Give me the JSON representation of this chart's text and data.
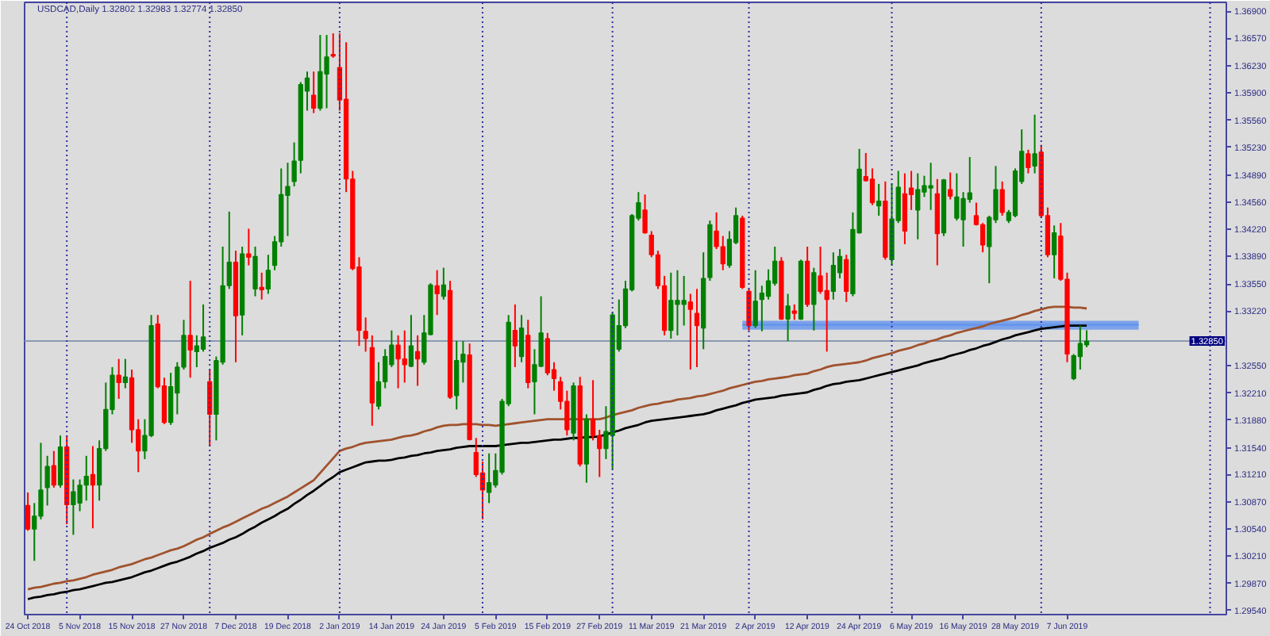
{
  "chart_data": {
    "type": "candlestick",
    "title": "USDCAD,Daily 1.32802 1.32983 1.32774 1.32850",
    "categories": [
      "24 Oct 2018",
      null,
      null,
      null,
      null,
      null,
      null,
      null,
      "5 Nov 2018",
      null,
      null,
      null,
      null,
      null,
      null,
      null,
      "15 Nov 2018",
      null,
      null,
      null,
      null,
      null,
      null,
      null,
      "27 Nov 2018",
      null,
      null,
      null,
      null,
      null,
      null,
      null,
      "7 Dec 2018",
      null,
      null,
      null,
      null,
      null,
      null,
      null,
      "19 Dec 2018",
      null,
      null,
      null,
      null,
      null,
      null,
      null,
      "2 Jan 2019",
      null,
      null,
      null,
      null,
      null,
      null,
      null,
      "14 Jan 2019",
      null,
      null,
      null,
      null,
      null,
      null,
      null,
      "24 Jan 2019",
      null,
      null,
      null,
      null,
      null,
      null,
      null,
      "5 Feb 2019",
      null,
      null,
      null,
      null,
      null,
      null,
      null,
      "15 Feb 2019",
      null,
      null,
      null,
      null,
      null,
      null,
      null,
      "27 Feb 2019",
      null,
      null,
      null,
      null,
      null,
      null,
      null,
      "11 Mar 2019",
      null,
      null,
      null,
      null,
      null,
      null,
      null,
      "21 Mar 2019",
      null,
      null,
      null,
      null,
      null,
      null,
      null,
      "2 Apr 2019",
      null,
      null,
      null,
      null,
      null,
      null,
      null,
      "12 Apr 2019",
      null,
      null,
      null,
      null,
      null,
      null,
      null,
      "24 Apr 2019",
      null,
      null,
      null,
      null,
      null,
      null,
      null,
      "6 May 2019",
      null,
      null,
      null,
      null,
      null,
      null,
      null,
      "16 May 2019",
      null,
      null,
      null,
      null,
      null,
      null,
      null,
      "28 May 2019",
      null,
      null,
      null,
      null,
      null,
      null,
      null,
      "7 Jun 2019",
      null,
      null,
      null,
      null,
      null,
      null,
      null,
      null,
      null,
      null,
      null,
      null,
      null,
      null,
      null,
      null,
      null,
      null,
      null,
      null,
      null,
      null,
      null,
      null
    ],
    "ohlc": [
      [
        1.3083,
        1.3099,
        1.3052,
        1.3054
      ],
      [
        1.3054,
        1.3086,
        1.3015,
        1.307
      ],
      [
        1.307,
        1.316,
        1.3066,
        1.3102
      ],
      [
        1.3105,
        1.3144,
        1.3083,
        1.3131
      ],
      [
        1.3132,
        1.315,
        1.3105,
        1.3108
      ],
      [
        1.3108,
        1.3169,
        1.3105,
        1.3155
      ],
      [
        1.3155,
        1.3169,
        1.306,
        1.3084
      ],
      [
        1.3084,
        1.3115,
        1.3047,
        1.31
      ],
      [
        1.3086,
        1.3115,
        1.3076,
        1.3108
      ],
      [
        1.3108,
        1.3144,
        1.3089,
        1.3119
      ],
      [
        1.3121,
        1.3156,
        1.3055,
        1.3108
      ],
      [
        1.3108,
        1.3163,
        1.3089,
        1.3153
      ],
      [
        1.3153,
        1.3234,
        1.315,
        1.3201
      ],
      [
        1.3201,
        1.3253,
        1.3195,
        1.3243
      ],
      [
        1.3243,
        1.3263,
        1.3214,
        1.3234
      ],
      [
        1.3234,
        1.3263,
        1.3227,
        1.3241
      ],
      [
        1.324,
        1.325,
        1.316,
        1.3176
      ],
      [
        1.3176,
        1.3189,
        1.3124,
        1.315
      ],
      [
        1.315,
        1.3189,
        1.314,
        1.3169
      ],
      [
        1.3169,
        1.3317,
        1.3167,
        1.3304
      ],
      [
        1.3306,
        1.3317,
        1.3227,
        1.3229
      ],
      [
        1.323,
        1.324,
        1.3183,
        1.3185
      ],
      [
        1.3185,
        1.3246,
        1.3182,
        1.3229
      ],
      [
        1.3221,
        1.3259,
        1.3195,
        1.3253
      ],
      [
        1.3253,
        1.3311,
        1.325,
        1.3292
      ],
      [
        1.3292,
        1.3359,
        1.324,
        1.3274
      ],
      [
        1.3272,
        1.3292,
        1.3253,
        1.3279
      ],
      [
        1.3275,
        1.333,
        1.3272,
        1.329
      ],
      [
        1.3235,
        1.325,
        1.3156,
        1.3195
      ],
      [
        1.3195,
        1.3266,
        1.3163,
        1.3261
      ],
      [
        1.3259,
        1.3401,
        1.3256,
        1.3353
      ],
      [
        1.3353,
        1.3444,
        1.3349,
        1.3382
      ],
      [
        1.3382,
        1.3396,
        1.3259,
        1.3316
      ],
      [
        1.3317,
        1.3401,
        1.3292,
        1.3392
      ],
      [
        1.3392,
        1.3423,
        1.3378,
        1.3388
      ],
      [
        1.3349,
        1.3401,
        1.334,
        1.3389
      ],
      [
        1.3351,
        1.3369,
        1.3336,
        1.3348
      ],
      [
        1.3349,
        1.3391,
        1.3343,
        1.3372
      ],
      [
        1.3378,
        1.3414,
        1.3372,
        1.3407
      ],
      [
        1.3407,
        1.3497,
        1.3401,
        1.3465
      ],
      [
        1.3464,
        1.3504,
        1.3414,
        1.3475
      ],
      [
        1.3481,
        1.3529,
        1.3475,
        1.3506
      ],
      [
        1.3507,
        1.3603,
        1.3491,
        1.36
      ],
      [
        1.3592,
        1.3616,
        1.3568,
        1.3608
      ],
      [
        1.3587,
        1.3616,
        1.3565,
        1.3571
      ],
      [
        1.3571,
        1.3661,
        1.3568,
        1.3616
      ],
      [
        1.3613,
        1.3661,
        1.3571,
        1.3634
      ],
      [
        1.3637,
        1.3663,
        1.3633,
        1.3635
      ],
      [
        1.3621,
        1.3663,
        1.3568,
        1.3581
      ],
      [
        1.3582,
        1.3652,
        1.3468,
        1.3484
      ],
      [
        1.3484,
        1.3494,
        1.3372,
        1.3374
      ],
      [
        1.3376,
        1.3388,
        1.3279,
        1.3298
      ],
      [
        1.3297,
        1.3314,
        1.3272,
        1.3288
      ],
      [
        1.3277,
        1.3292,
        1.3181,
        1.3209
      ],
      [
        1.3205,
        1.3259,
        1.3201,
        1.3235
      ],
      [
        1.3235,
        1.3275,
        1.3227,
        1.3266
      ],
      [
        1.3256,
        1.3298,
        1.3253,
        1.328
      ],
      [
        1.328,
        1.3292,
        1.3227,
        1.3263
      ],
      [
        1.3263,
        1.3298,
        1.3234,
        1.3256
      ],
      [
        1.3254,
        1.3317,
        1.3253,
        1.3279
      ],
      [
        1.3272,
        1.3292,
        1.323,
        1.3263
      ],
      [
        1.3259,
        1.3317,
        1.3256,
        1.3295
      ],
      [
        1.3293,
        1.3356,
        1.3292,
        1.3354
      ],
      [
        1.3353,
        1.3372,
        1.3317,
        1.3343
      ],
      [
        1.334,
        1.3375,
        1.3336,
        1.3354
      ],
      [
        1.3347,
        1.3359,
        1.3214,
        1.3216
      ],
      [
        1.3218,
        1.3285,
        1.3201,
        1.3261
      ],
      [
        1.3259,
        1.3285,
        1.3234,
        1.3269
      ],
      [
        1.3268,
        1.3282,
        1.3163,
        1.3164
      ],
      [
        1.3148,
        1.3166,
        1.3118,
        1.3121
      ],
      [
        1.3123,
        1.3137,
        1.3066,
        1.3102
      ],
      [
        1.3099,
        1.3147,
        1.3086,
        1.3111
      ],
      [
        1.3108,
        1.3147,
        1.3105,
        1.3126
      ],
      [
        1.3124,
        1.3214,
        1.3121,
        1.3211
      ],
      [
        1.3208,
        1.3317,
        1.3205,
        1.3308
      ],
      [
        1.3298,
        1.333,
        1.3253,
        1.3279
      ],
      [
        1.3266,
        1.3317,
        1.3259,
        1.3301
      ],
      [
        1.3292,
        1.3311,
        1.3227,
        1.3234
      ],
      [
        1.3235,
        1.3275,
        1.3195,
        1.3256
      ],
      [
        1.3254,
        1.334,
        1.3253,
        1.3295
      ],
      [
        1.3288,
        1.3295,
        1.3243,
        1.3246
      ],
      [
        1.325,
        1.3259,
        1.3224,
        1.3239
      ],
      [
        1.3235,
        1.3241,
        1.3201,
        1.3211
      ],
      [
        1.3211,
        1.3224,
        1.3169,
        1.3176
      ],
      [
        1.3172,
        1.3234,
        1.3163,
        1.323
      ],
      [
        1.323,
        1.3241,
        1.3131,
        1.3134
      ],
      [
        1.3134,
        1.3195,
        1.3111,
        1.3189
      ],
      [
        1.3189,
        1.3237,
        1.3163,
        1.3169
      ],
      [
        1.3169,
        1.3176,
        1.3118,
        1.3153
      ],
      [
        1.3153,
        1.3205,
        1.314,
        1.3174
      ],
      [
        1.3169,
        1.332,
        1.3128,
        1.3317
      ],
      [
        1.3275,
        1.3336,
        1.3272,
        1.3304
      ],
      [
        1.3304,
        1.3359,
        1.3301,
        1.3349
      ],
      [
        1.3348,
        1.3441,
        1.3346,
        1.3439
      ],
      [
        1.3436,
        1.3468,
        1.3433,
        1.3455
      ],
      [
        1.3446,
        1.3465,
        1.3417,
        1.3418
      ],
      [
        1.3415,
        1.342,
        1.3388,
        1.3391
      ],
      [
        1.3391,
        1.3396,
        1.3349,
        1.3353
      ],
      [
        1.3353,
        1.3365,
        1.3292,
        1.3298
      ],
      [
        1.3298,
        1.3369,
        1.3288,
        1.3335
      ],
      [
        1.333,
        1.3372,
        1.3292,
        1.3335
      ],
      [
        1.333,
        1.3365,
        1.3304,
        1.3335
      ],
      [
        1.3333,
        1.3343,
        1.325,
        1.3324
      ],
      [
        1.3319,
        1.3349,
        1.3253,
        1.3304
      ],
      [
        1.3301,
        1.3394,
        1.3275,
        1.3362
      ],
      [
        1.3363,
        1.3433,
        1.3359,
        1.3428
      ],
      [
        1.342,
        1.3443,
        1.3398,
        1.3401
      ],
      [
        1.3401,
        1.3414,
        1.3372,
        1.338
      ],
      [
        1.3378,
        1.342,
        1.3375,
        1.341
      ],
      [
        1.3406,
        1.3449,
        1.3404,
        1.3439
      ],
      [
        1.3436,
        1.3439,
        1.3349,
        1.3351
      ],
      [
        1.3346,
        1.3349,
        1.3298,
        1.3304
      ],
      [
        1.3304,
        1.3372,
        1.3301,
        1.3334
      ],
      [
        1.3336,
        1.3353,
        1.3297,
        1.3344
      ],
      [
        1.334,
        1.3373,
        1.3336,
        1.3359
      ],
      [
        1.3356,
        1.3401,
        1.3353,
        1.3383
      ],
      [
        1.3383,
        1.3388,
        1.3311,
        1.3312
      ],
      [
        1.3312,
        1.3343,
        1.3285,
        1.3328
      ],
      [
        1.3322,
        1.333,
        1.3311,
        1.3319
      ],
      [
        1.3312,
        1.3385,
        1.3311,
        1.3383
      ],
      [
        1.3383,
        1.3401,
        1.3327,
        1.333
      ],
      [
        1.333,
        1.3375,
        1.3298,
        1.3369
      ],
      [
        1.3365,
        1.3401,
        1.3343,
        1.3346
      ],
      [
        1.3347,
        1.3369,
        1.3272,
        1.3336
      ],
      [
        1.3346,
        1.3394,
        1.3336,
        1.3378
      ],
      [
        1.3369,
        1.3398,
        1.3362,
        1.3389
      ],
      [
        1.3385,
        1.3391,
        1.3333,
        1.3346
      ],
      [
        1.3343,
        1.3443,
        1.334,
        1.3422
      ],
      [
        1.3418,
        1.3521,
        1.3417,
        1.3496
      ],
      [
        1.3487,
        1.3516,
        1.3481,
        1.3482
      ],
      [
        1.3484,
        1.3497,
        1.3452,
        1.3455
      ],
      [
        1.3451,
        1.3478,
        1.3439,
        1.3457
      ],
      [
        1.3457,
        1.3481,
        1.3385,
        1.3388
      ],
      [
        1.3385,
        1.3478,
        1.3378,
        1.3435
      ],
      [
        1.3433,
        1.3494,
        1.343,
        1.3474
      ],
      [
        1.3466,
        1.3491,
        1.3404,
        1.342
      ],
      [
        1.3473,
        1.3494,
        1.3446,
        1.3465
      ],
      [
        1.3446,
        1.3491,
        1.341,
        1.3471
      ],
      [
        1.3468,
        1.3488,
        1.3462,
        1.3476
      ],
      [
        1.3473,
        1.3504,
        1.3446,
        1.3476
      ],
      [
        1.3466,
        1.3484,
        1.3378,
        1.3417
      ],
      [
        1.3418,
        1.3484,
        1.3414,
        1.3483
      ],
      [
        1.3471,
        1.3492,
        1.3459,
        1.3463
      ],
      [
        1.3436,
        1.3491,
        1.3433,
        1.3462
      ],
      [
        1.3434,
        1.3468,
        1.3401,
        1.346
      ],
      [
        1.3459,
        1.3511,
        1.3455,
        1.3467
      ],
      [
        1.3439,
        1.3455,
        1.3427,
        1.3428
      ],
      [
        1.3428,
        1.343,
        1.3394,
        1.3403
      ],
      [
        1.3401,
        1.3439,
        1.3356,
        1.3437
      ],
      [
        1.3434,
        1.35,
        1.343,
        1.3471
      ],
      [
        1.3471,
        1.3481,
        1.3439,
        1.3443
      ],
      [
        1.3433,
        1.3446,
        1.343,
        1.3443
      ],
      [
        1.3439,
        1.3497,
        1.3437,
        1.3494
      ],
      [
        1.3481,
        1.3545,
        1.3478,
        1.3518
      ],
      [
        1.3515,
        1.352,
        1.3491,
        1.3498
      ],
      [
        1.35,
        1.3563,
        1.3491,
        1.3515
      ],
      [
        1.3517,
        1.3526,
        1.3436,
        1.3439
      ],
      [
        1.3439,
        1.3449,
        1.3388,
        1.3391
      ],
      [
        1.3391,
        1.3427,
        1.3362,
        1.3418
      ],
      [
        1.3414,
        1.343,
        1.3359,
        1.3361
      ],
      [
        1.3361,
        1.3369,
        1.3259,
        1.3269
      ],
      [
        1.3239,
        1.3269,
        1.3237,
        1.3267
      ],
      [
        1.3266,
        1.3304,
        1.325,
        1.3282
      ],
      [
        1.32802,
        1.32983,
        1.32774,
        1.3285
      ],
      null,
      null,
      null,
      null,
      null,
      null,
      null,
      null,
      null,
      null,
      null,
      null,
      null,
      null,
      null,
      null,
      null,
      null,
      null,
      null,
      null
    ],
    "colors": [
      "#ff0000",
      "#008000",
      "#008000",
      "#008000",
      "#ff0000",
      "#008000",
      "#ff0000",
      "#008000",
      "#008000",
      "#008000",
      "#ff0000",
      "#008000",
      "#008000",
      "#008000",
      "#ff0000",
      "#008000",
      "#ff0000",
      "#ff0000",
      "#008000",
      "#008000",
      "#ff0000",
      "#ff0000",
      "#008000",
      "#008000",
      "#008000",
      "#ff0000",
      "#008000",
      "#008000",
      "#ff0000",
      "#008000",
      "#008000",
      "#008000",
      "#ff0000",
      "#008000",
      "#ff0000",
      "#008000",
      "#ff0000",
      "#008000",
      "#008000",
      "#008000",
      "#008000",
      "#008000",
      "#008000",
      "#008000",
      "#ff0000",
      "#008000",
      "#008000",
      "#ff0000",
      "#ff0000",
      "#ff0000",
      "#ff0000",
      "#ff0000",
      "#ff0000",
      "#ff0000",
      "#008000",
      "#008000",
      "#008000",
      "#ff0000",
      "#ff0000",
      "#008000",
      "#ff0000",
      "#008000",
      "#008000",
      "#ff0000",
      "#008000",
      "#ff0000",
      "#008000",
      "#008000",
      "#ff0000",
      "#ff0000",
      "#ff0000",
      "#008000",
      "#008000",
      "#008000",
      "#008000",
      "#ff0000",
      "#008000",
      "#ff0000",
      "#008000",
      "#008000",
      "#ff0000",
      "#ff0000",
      "#ff0000",
      "#ff0000",
      "#008000",
      "#ff0000",
      "#008000",
      "#ff0000",
      "#ff0000",
      "#008000",
      "#008000",
      "#008000",
      "#008000",
      "#008000",
      "#008000",
      "#ff0000",
      "#ff0000",
      "#ff0000",
      "#ff0000",
      "#008000",
      "#008000",
      "#008000",
      "#ff0000",
      "#ff0000",
      "#008000",
      "#008000",
      "#ff0000",
      "#ff0000",
      "#008000",
      "#008000",
      "#ff0000",
      "#ff0000",
      "#008000",
      "#008000",
      "#008000",
      "#008000",
      "#ff0000",
      "#008000",
      "#ff0000",
      "#008000",
      "#ff0000",
      "#008000",
      "#ff0000",
      "#ff0000",
      "#008000",
      "#008000",
      "#ff0000",
      "#008000",
      "#008000",
      "#ff0000",
      "#ff0000",
      "#008000",
      "#ff0000",
      "#008000",
      "#008000",
      "#ff0000",
      "#ff0000",
      "#008000",
      "#008000",
      "#008000",
      "#ff0000",
      "#008000",
      "#ff0000",
      "#008000",
      "#008000",
      "#008000",
      "#ff0000",
      "#ff0000",
      "#008000",
      "#008000",
      "#ff0000",
      "#008000",
      "#008000",
      "#008000",
      "#ff0000",
      "#008000",
      "#ff0000",
      "#ff0000",
      "#008000",
      "#ff0000",
      "#ff0000",
      "#008000",
      "#008000",
      "#008000",
      null,
      null,
      null,
      null,
      null,
      null,
      null,
      null,
      null,
      null,
      null,
      null,
      null,
      null,
      null,
      null,
      null,
      null,
      null,
      null,
      null
    ],
    "series": [
      {
        "type": "line",
        "color": "#6495ed",
        "values": [
          null,
          null,
          null,
          null,
          null,
          null,
          null,
          null,
          null,
          null,
          null,
          null,
          null,
          null,
          null,
          null,
          null,
          null,
          null,
          null,
          null,
          null,
          null,
          null,
          null,
          null,
          null,
          null,
          null,
          null,
          null,
          null,
          null,
          null,
          null,
          null,
          null,
          null,
          null,
          null,
          null,
          null,
          null,
          null,
          null,
          null,
          null,
          null,
          null,
          null,
          null,
          null,
          null,
          null,
          null,
          null,
          null,
          null,
          null,
          null,
          null,
          null,
          null,
          null,
          null,
          null,
          null,
          null,
          null,
          null,
          null,
          null,
          null,
          null,
          null,
          null,
          null,
          null,
          null,
          null,
          null,
          null,
          null,
          null,
          null,
          null,
          null,
          null,
          null,
          null,
          null,
          null,
          null,
          null,
          null,
          null,
          null,
          null,
          null,
          null,
          null,
          null,
          null,
          null,
          null,
          null,
          null,
          null,
          null,
          null,
          1.3305,
          1.3305,
          1.3305,
          1.3305,
          1.3305,
          1.3305,
          1.3305,
          1.3305,
          1.3305,
          1.3305,
          1.3305,
          1.3305,
          1.3305,
          1.3305,
          1.3305,
          1.3305,
          1.3305,
          1.3305,
          1.3305,
          1.3305,
          1.3305,
          1.3305,
          1.3305,
          1.3305,
          1.3305,
          1.3305,
          1.3305,
          1.3305,
          1.3305,
          1.3305,
          1.3305,
          1.3305,
          1.3305,
          1.3305,
          1.3305,
          1.3305,
          1.3305,
          1.3305,
          1.3305,
          1.3305,
          1.3305,
          1.3305,
          1.3305,
          1.3305,
          1.3305,
          1.3305,
          1.3305,
          1.3305,
          1.3305,
          1.3305,
          1.3305,
          1.3305,
          1.3305,
          1.3305,
          1.3305,
          1.3305,
          1.3305,
          1.3305,
          1.3305,
          1.3305,
          1.3305,
          1.3305,
          null,
          null,
          null,
          null,
          null,
          null,
          null,
          null,
          null,
          null,
          null,
          null,
          null
        ],
        "lower": [
          null,
          null,
          null,
          null,
          null,
          null,
          null,
          null,
          null,
          null,
          null,
          null,
          null,
          null,
          null,
          null,
          null,
          null,
          null,
          null,
          null,
          null,
          null,
          null,
          null,
          null,
          null,
          null,
          null,
          null,
          null,
          null,
          null,
          null,
          null,
          null,
          null,
          null,
          null,
          null,
          null,
          null,
          null,
          null,
          null,
          null,
          null,
          null,
          null,
          null,
          null,
          null,
          null,
          null,
          null,
          null,
          null,
          null,
          null,
          null,
          null,
          null,
          null,
          null,
          null,
          null,
          null,
          null,
          null,
          null,
          null,
          null,
          null,
          null,
          null,
          null,
          null,
          null,
          null,
          null,
          null,
          null,
          null,
          null,
          null,
          null,
          null,
          null,
          null,
          null,
          null,
          null,
          null,
          null,
          null,
          null,
          null,
          null,
          null,
          null,
          null,
          null,
          null,
          null,
          null,
          null,
          null,
          null,
          null,
          null,
          1.3299,
          1.3299,
          1.3299,
          1.3299,
          1.3299,
          1.3299,
          1.3299,
          1.3299,
          1.3299,
          1.3299,
          1.3299,
          1.3299,
          1.3299,
          1.3299,
          1.3299,
          1.3299,
          1.3299,
          1.3299,
          1.3299,
          1.3299,
          1.3299,
          1.3299,
          1.3299,
          1.3299,
          1.3299,
          1.3299,
          1.3299,
          1.3299,
          1.3299,
          1.3299,
          1.3299,
          1.3299,
          1.3299,
          1.3299,
          1.3299,
          1.3299,
          1.3299,
          1.3299,
          1.3299,
          1.3299,
          1.3299,
          1.3299,
          1.3299,
          1.3299,
          1.3299,
          1.3299,
          1.3299,
          1.3299,
          1.3299,
          1.3299,
          1.3299,
          1.3299,
          1.3299,
          1.3299,
          1.3299,
          1.3299,
          1.3299,
          1.3299,
          1.3299,
          1.3299,
          1.3299,
          1.3299,
          null,
          null,
          null,
          null,
          null,
          null,
          null,
          null,
          null,
          null,
          null,
          null,
          null
        ],
        "upper": [
          null,
          null,
          null,
          null,
          null,
          null,
          null,
          null,
          null,
          null,
          null,
          null,
          null,
          null,
          null,
          null,
          null,
          null,
          null,
          null,
          null,
          null,
          null,
          null,
          null,
          null,
          null,
          null,
          null,
          null,
          null,
          null,
          null,
          null,
          null,
          null,
          null,
          null,
          null,
          null,
          null,
          null,
          null,
          null,
          null,
          null,
          null,
          null,
          null,
          null,
          null,
          null,
          null,
          null,
          null,
          null,
          null,
          null,
          null,
          null,
          null,
          null,
          null,
          null,
          null,
          null,
          null,
          null,
          null,
          null,
          null,
          null,
          null,
          null,
          null,
          null,
          null,
          null,
          null,
          null,
          null,
          null,
          null,
          null,
          null,
          null,
          null,
          null,
          null,
          null,
          null,
          null,
          null,
          null,
          null,
          null,
          null,
          null,
          null,
          null,
          null,
          null,
          null,
          null,
          null,
          null,
          null,
          null,
          null,
          null,
          1.331,
          1.331,
          1.331,
          1.331,
          1.331,
          1.331,
          1.331,
          1.331,
          1.331,
          1.331,
          1.331,
          1.331,
          1.331,
          1.331,
          1.331,
          1.331,
          1.331,
          1.331,
          1.331,
          1.331,
          1.331,
          1.331,
          1.331,
          1.331,
          1.331,
          1.331,
          1.331,
          1.331,
          1.331,
          1.331,
          1.331,
          1.331,
          1.331,
          1.331,
          1.331,
          1.331,
          1.331,
          1.331,
          1.331,
          1.331,
          1.331,
          1.331,
          1.331,
          1.331,
          1.331,
          1.331,
          1.331,
          1.331,
          1.331,
          1.331,
          1.331,
          1.331,
          1.331,
          1.331,
          1.331,
          1.331,
          1.331,
          1.331,
          1.331,
          1.331,
          1.331,
          1.331,
          null,
          null,
          null,
          null,
          null,
          null,
          null,
          null,
          null,
          null,
          null,
          null,
          null
        ]
      },
      {
        "type": "line",
        "color": "#a0522d",
        "values": [
          1.298,
          1.2982,
          1.2983,
          1.2985,
          1.2987,
          1.2988,
          1.299,
          1.2991,
          1.2993,
          1.2995,
          1.2998,
          1.3,
          1.3002,
          1.3004,
          1.3007,
          1.3009,
          1.3011,
          1.3014,
          1.3017,
          1.3019,
          1.3022,
          1.3025,
          1.3028,
          1.303,
          1.3033,
          1.3037,
          1.3041,
          1.3044,
          1.3048,
          1.3052,
          1.3056,
          1.3059,
          1.3063,
          1.3067,
          1.3071,
          1.3075,
          1.3079,
          1.3082,
          1.3086,
          1.309,
          1.3094,
          1.3099,
          1.3104,
          1.3109,
          1.3114,
          1.3123,
          1.3132,
          1.3141,
          1.315,
          1.3153,
          1.3155,
          1.3158,
          1.316,
          1.3161,
          1.3162,
          1.3163,
          1.3164,
          1.3166,
          1.3168,
          1.3169,
          1.3171,
          1.3174,
          1.3176,
          1.3179,
          1.3181,
          1.3182,
          1.3182,
          1.3183,
          1.3183,
          1.3183,
          1.3182,
          1.3182,
          1.3181,
          1.3182,
          1.3183,
          1.3184,
          1.3185,
          1.3186,
          1.3187,
          1.3188,
          1.3189,
          1.3189,
          1.3189,
          1.3189,
          1.3189,
          1.3189,
          1.3189,
          1.3189,
          1.3189,
          1.3191,
          1.3194,
          1.3196,
          1.3198,
          1.32,
          1.3203,
          1.3205,
          1.3207,
          1.3208,
          1.321,
          1.3211,
          1.3213,
          1.3214,
          1.3215,
          1.3217,
          1.3218,
          1.322,
          1.3222,
          1.3224,
          1.3227,
          1.3229,
          1.3231,
          1.3233,
          1.3235,
          1.3236,
          1.3238,
          1.3239,
          1.324,
          1.3241,
          1.3243,
          1.3244,
          1.3245,
          1.3248,
          1.325,
          1.3253,
          1.3255,
          1.3256,
          1.3257,
          1.3258,
          1.3259,
          1.3261,
          1.3264,
          1.3266,
          1.3268,
          1.327,
          1.3273,
          1.3275,
          1.3277,
          1.328,
          1.3282,
          1.3285,
          1.3287,
          1.329,
          1.3292,
          1.3295,
          1.3297,
          1.3299,
          1.3301,
          1.3303,
          1.3306,
          1.3308,
          1.331,
          1.3312,
          1.3314,
          1.3317,
          1.3319,
          1.3322,
          1.3324,
          1.3326,
          1.3327,
          1.3327,
          1.3327,
          1.3326,
          1.3326,
          1.3325,
          null,
          null,
          null,
          null,
          null,
          null,
          null,
          null,
          null,
          null,
          null,
          null,
          null,
          null,
          null,
          null,
          null,
          null,
          null,
          null,
          null
        ]
      },
      {
        "type": "line",
        "color": "#000000",
        "values": [
          1.2968,
          1.297,
          1.2971,
          1.2973,
          1.2974,
          1.2976,
          1.2977,
          1.2979,
          1.298,
          1.2982,
          1.2984,
          1.2986,
          1.2988,
          1.2989,
          1.2991,
          1.2993,
          1.2995,
          1.2998,
          1.3001,
          1.3003,
          1.3006,
          1.3009,
          1.3012,
          1.3014,
          1.3017,
          1.302,
          1.3024,
          1.3027,
          1.3031,
          1.3034,
          1.3037,
          1.3041,
          1.3044,
          1.3048,
          1.3053,
          1.3057,
          1.3062,
          1.3066,
          1.307,
          1.3075,
          1.3079,
          1.3085,
          1.309,
          1.3096,
          1.3101,
          1.3107,
          1.3113,
          1.3118,
          1.3124,
          1.3127,
          1.313,
          1.3133,
          1.3136,
          1.3137,
          1.3138,
          1.3138,
          1.3139,
          1.3141,
          1.3142,
          1.3144,
          1.3145,
          1.3147,
          1.3148,
          1.315,
          1.3151,
          1.3152,
          1.3154,
          1.3155,
          1.3156,
          1.3156,
          1.3156,
          1.3156,
          1.3156,
          1.3157,
          1.3158,
          1.3159,
          1.316,
          1.316,
          1.3161,
          1.3162,
          1.3163,
          1.3164,
          1.3164,
          1.3165,
          1.3166,
          1.3166,
          1.3167,
          1.3167,
          1.3168,
          1.317,
          1.3173,
          1.3175,
          1.3178,
          1.318,
          1.3182,
          1.3185,
          1.3187,
          1.3188,
          1.3189,
          1.319,
          1.3191,
          1.3192,
          1.3193,
          1.3194,
          1.3195,
          1.3197,
          1.32,
          1.3202,
          1.3204,
          1.3206,
          1.3209,
          1.3211,
          1.3213,
          1.3214,
          1.3215,
          1.3216,
          1.3218,
          1.3219,
          1.322,
          1.3221,
          1.3222,
          1.3225,
          1.3227,
          1.323,
          1.3232,
          1.3233,
          1.3235,
          1.3236,
          1.3237,
          1.3239,
          1.3241,
          1.3243,
          1.3245,
          1.3247,
          1.3249,
          1.3251,
          1.3253,
          1.3255,
          1.3258,
          1.326,
          1.3262,
          1.3264,
          1.3267,
          1.3269,
          1.3271,
          1.3274,
          1.3276,
          1.3279,
          1.3281,
          1.3284,
          1.3287,
          1.3289,
          1.3292,
          1.3294,
          1.3296,
          1.3298,
          1.33,
          1.3301,
          1.3302,
          1.3303,
          1.3304,
          1.3304,
          1.3304,
          1.3304,
          null,
          null,
          null,
          null,
          null,
          null,
          null,
          null,
          null,
          null,
          null,
          null,
          null,
          null,
          null,
          null,
          null,
          null,
          null,
          null,
          null
        ]
      }
    ],
    "ylim": [
      1.2949,
      1.3701
    ],
    "yticks": [
      {
        "value": 1.369,
        "label": "1.36900"
      },
      {
        "value": 1.3657,
        "label": "1.36570"
      },
      {
        "value": 1.3623,
        "label": "1.36230"
      },
      {
        "value": 1.359,
        "label": "1.35900"
      },
      {
        "value": 1.3556,
        "label": "1.35560"
      },
      {
        "value": 1.3523,
        "label": "1.35230"
      },
      {
        "value": 1.3489,
        "label": "1.34890"
      },
      {
        "value": 1.3456,
        "label": "1.34560"
      },
      {
        "value": 1.3422,
        "label": "1.34220"
      },
      {
        "value": 1.3389,
        "label": "1.33890"
      },
      {
        "value": 1.3355,
        "label": "1.33550"
      },
      {
        "value": 1.3322,
        "label": "1.33220"
      },
      {
        "value": 1.3255,
        "label": "1.32550"
      },
      {
        "value": 1.3221,
        "label": "1.32210"
      },
      {
        "value": 1.3188,
        "label": "1.31880"
      },
      {
        "value": 1.3154,
        "label": "1.31540"
      },
      {
        "value": 1.3121,
        "label": "1.31210"
      },
      {
        "value": 1.3087,
        "label": "1.30870"
      },
      {
        "value": 1.3054,
        "label": "1.30540"
      },
      {
        "value": 1.3021,
        "label": "1.30210"
      },
      {
        "value": 1.2987,
        "label": "1.29870"
      },
      {
        "value": 1.2954,
        "label": "1.29540"
      }
    ],
    "ref_lines": [
      {
        "axis": "y",
        "value": 1.3285,
        "label": "1.32850",
        "color": "#8a9ab4",
        "line_style": "solid"
      }
    ]
  }
}
